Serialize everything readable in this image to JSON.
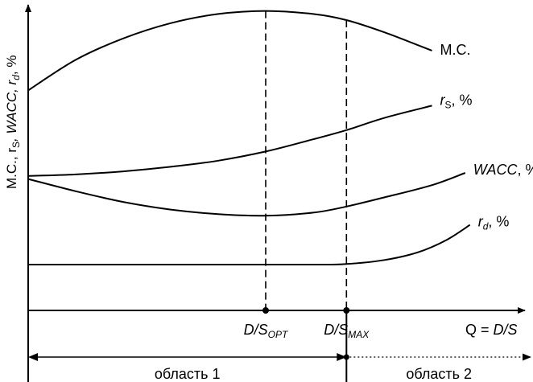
{
  "colors": {
    "ink": "#000000",
    "background": "#ffffff"
  },
  "chart_data": {
    "type": "line",
    "xlabel": "Q = D/S",
    "ylabel": "M.C., rS, WACC, rd, %",
    "ylabel_parts": {
      "a": "M.C., r",
      "b": "S",
      "c": ", WACC, r",
      "d": "d",
      "e": ", %"
    },
    "xlabel_parts": {
      "a": "Q = ",
      "b": "D/S"
    },
    "x_markers": [
      {
        "key": "opt",
        "base": "D/S",
        "sub": "OPT",
        "x": 0.5
      },
      {
        "key": "max",
        "base": "D/S",
        "sub": "MAX",
        "x": 0.67
      }
    ],
    "regions": [
      {
        "label": "область 1",
        "from": 0,
        "to": 0.67,
        "style": "solid"
      },
      {
        "label": "область 2",
        "from": 0.67,
        "to": 1.07,
        "style": "dotted"
      }
    ],
    "series": [
      {
        "key": "mc",
        "name": "M.C.",
        "label_base": "M.C.",
        "label_sub": "",
        "label_tail": "",
        "x": [
          0,
          0.1,
          0.2,
          0.3,
          0.4,
          0.5,
          0.6,
          0.67,
          0.75,
          0.85
        ],
        "y": [
          0.72,
          0.82,
          0.89,
          0.94,
          0.97,
          0.98,
          0.97,
          0.95,
          0.91,
          0.85
        ]
      },
      {
        "key": "rs",
        "name": "rS, %",
        "label_base": "r",
        "label_sub": "S",
        "label_tail": ", %",
        "x": [
          0,
          0.1,
          0.2,
          0.3,
          0.4,
          0.5,
          0.6,
          0.67,
          0.75,
          0.85
        ],
        "y": [
          0.44,
          0.445,
          0.455,
          0.47,
          0.49,
          0.52,
          0.56,
          0.59,
          0.63,
          0.67
        ]
      },
      {
        "key": "wacc",
        "name": "WACC, %",
        "label_base": "WACC",
        "label_sub": "",
        "label_tail": ", %",
        "x": [
          0,
          0.1,
          0.2,
          0.3,
          0.4,
          0.5,
          0.6,
          0.67,
          0.75,
          0.85,
          0.92
        ],
        "y": [
          0.43,
          0.39,
          0.355,
          0.33,
          0.315,
          0.31,
          0.32,
          0.34,
          0.37,
          0.41,
          0.45
        ]
      },
      {
        "key": "rd",
        "name": "rd, %",
        "label_base": "r",
        "label_sub": "d",
        "label_tail": ", %",
        "x": [
          0,
          0.2,
          0.4,
          0.6,
          0.67,
          0.75,
          0.82,
          0.88,
          0.93
        ],
        "y": [
          0.15,
          0.15,
          0.15,
          0.15,
          0.152,
          0.165,
          0.19,
          0.23,
          0.28
        ]
      }
    ]
  }
}
